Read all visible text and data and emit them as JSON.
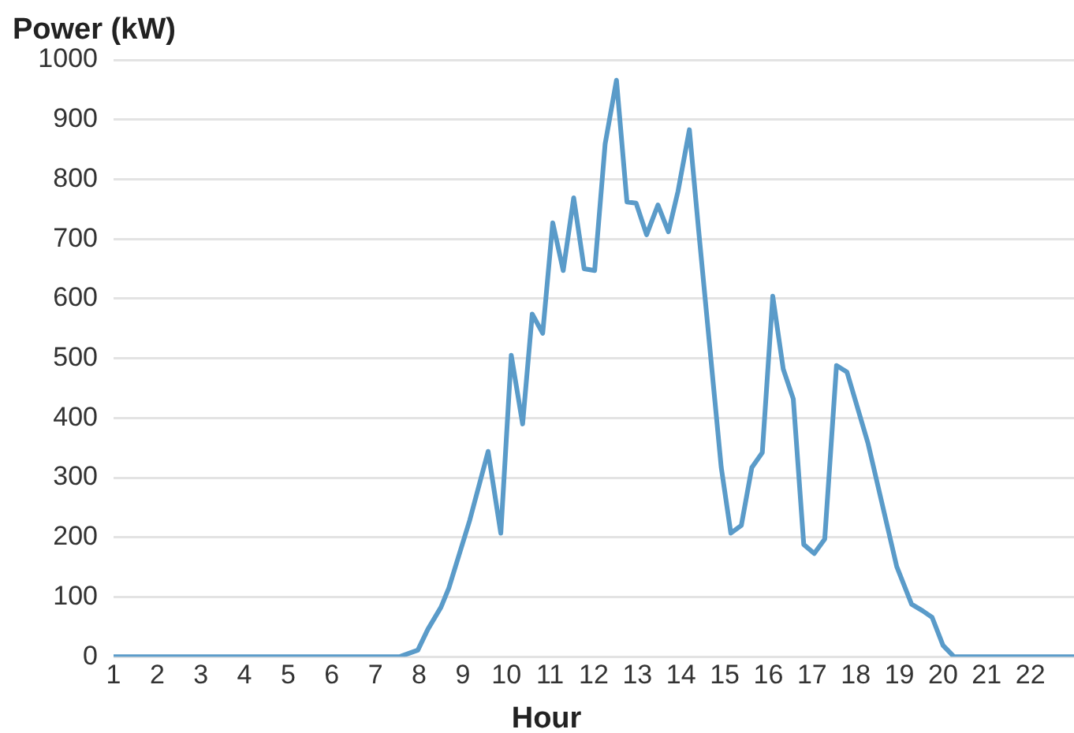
{
  "chart_data": {
    "type": "line",
    "xlabel": "Hour",
    "ylabel": "Power (kW)",
    "xlim": [
      1,
      23
    ],
    "xticks": [
      1,
      2,
      3,
      4,
      5,
      6,
      7,
      8,
      9,
      10,
      11,
      12,
      13,
      14,
      15,
      16,
      17,
      18,
      19,
      20,
      21,
      22
    ],
    "ylim": [
      0,
      1000
    ],
    "yticks": [
      0,
      100,
      200,
      300,
      400,
      500,
      600,
      700,
      800,
      900,
      1000
    ],
    "grid": "y",
    "marker": "none",
    "line_style": "solid",
    "legend": false,
    "series": [
      {
        "color": "#5a9bc9",
        "x": [
          1,
          7.55,
          7.97,
          8.2,
          8.5,
          8.68,
          9.16,
          9.58,
          9.87,
          10.11,
          10.37,
          10.59,
          10.83,
          11.06,
          11.3,
          11.54,
          11.78,
          12.02,
          12.26,
          12.52,
          12.76,
          12.97,
          13.21,
          13.47,
          13.71,
          13.93,
          14.19,
          14.4,
          14.92,
          15.14,
          15.38,
          15.62,
          15.86,
          16.1,
          16.34,
          16.57,
          16.81,
          17.05,
          17.29,
          17.56,
          17.8,
          18.28,
          18.94,
          19.28,
          19.53,
          19.75,
          20,
          20.25,
          23
        ],
        "values": [
          0,
          0,
          11,
          46,
          83,
          115,
          229,
          344,
          207,
          505,
          390,
          574,
          542,
          727,
          647,
          769,
          650,
          647,
          859,
          966,
          762,
          760,
          707,
          757,
          712,
          780,
          883,
          716,
          317,
          207,
          220,
          317,
          342,
          604,
          482,
          432,
          188,
          173,
          197,
          488,
          477,
          358,
          151,
          88,
          77,
          66,
          19,
          0,
          0
        ]
      }
    ]
  }
}
